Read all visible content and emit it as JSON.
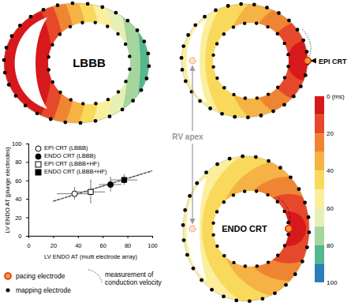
{
  "maps": [
    {
      "label": "LBBB",
      "bands": [
        0,
        10,
        20,
        30,
        40,
        50,
        60,
        70,
        80
      ]
    },
    {
      "label": "EPI CRT",
      "bands": [
        0,
        10,
        20,
        30,
        40,
        50
      ]
    },
    {
      "label": "ENDO CRT",
      "bands": [
        0,
        10,
        20,
        30,
        40,
        50
      ]
    }
  ],
  "rv_apex_label": "RV apex",
  "colorbar": {
    "range": [
      0,
      100
    ],
    "ticks": [
      {
        "value": 0,
        "label": "0 (ms)"
      },
      20,
      40,
      60,
      80,
      100
    ],
    "colors": [
      "#d7191c",
      "#e5482a",
      "#ef8532",
      "#f5b245",
      "#f8d95b",
      "#fbef9e",
      "#e6f0b6",
      "#a4d69d",
      "#54b78d",
      "#2a7fb8"
    ]
  },
  "legend": [
    {
      "marker": "pacing",
      "label": "pacing electrode"
    },
    {
      "marker": "mapping",
      "label": "mapping electrode"
    },
    {
      "marker": "dotted",
      "label": "measurement of conduction velocity"
    }
  ],
  "chart_data": {
    "type": "scatter",
    "x_label": "LV ENDO AT (multi electrode array)",
    "y_label": "LV ENDO AT (plunge electrodes)",
    "xlim": [
      0,
      100
    ],
    "ylim": [
      0,
      100
    ],
    "xticks": [
      0,
      20,
      40,
      60,
      80,
      100
    ],
    "yticks": [
      0,
      20,
      40,
      60,
      80,
      100
    ],
    "legend": "top-left",
    "series": [
      {
        "name": "EPI CRT (LBBB)",
        "marker": "circle-open",
        "color": "#000000",
        "x": [
          37
        ],
        "y": [
          46
        ],
        "x_error": [
          14
        ],
        "y_error": [
          7
        ]
      },
      {
        "name": "ENDO CRT (LBBB)",
        "marker": "circle-filled",
        "color": "#000000",
        "x": [
          66
        ],
        "y": [
          56
        ],
        "x_error": [
          9
        ],
        "y_error": [
          8
        ]
      },
      {
        "name": "EPI CRT (LBBB+HF)",
        "marker": "square-open",
        "color": "#000000",
        "x": [
          50
        ],
        "y": [
          48
        ],
        "x_error": [
          12
        ],
        "y_error": [
          13
        ]
      },
      {
        "name": "ENDO CRT (LBBB+HF)",
        "marker": "square-filled",
        "color": "#000000",
        "x": [
          77
        ],
        "y": [
          61
        ],
        "x_error": [
          11
        ],
        "y_error": [
          6
        ]
      }
    ],
    "trend_line": {
      "x": [
        20,
        100
      ],
      "y": [
        38,
        71
      ],
      "line_style": "dashed"
    }
  }
}
